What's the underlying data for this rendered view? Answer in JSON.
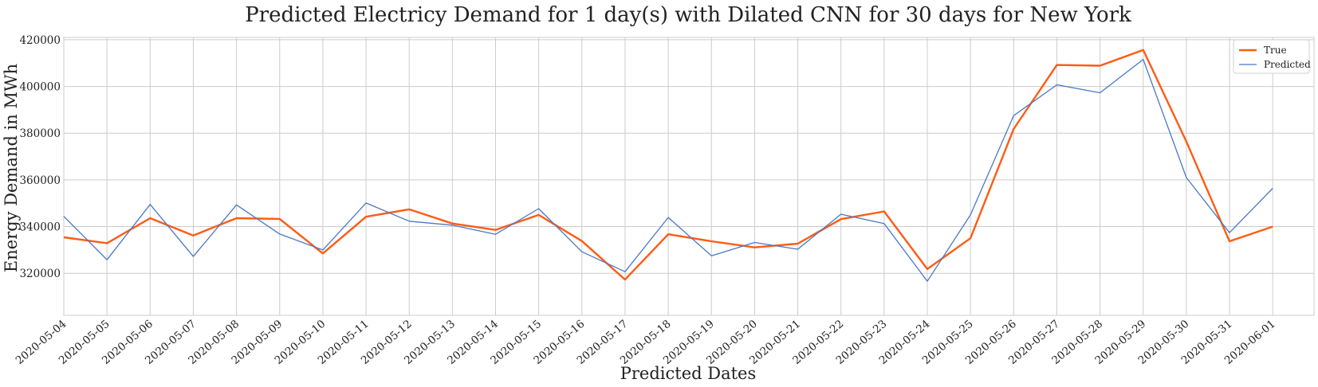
{
  "chart_data": {
    "type": "line",
    "title": "Predicted Electricy Demand for 1 day(s) with Dilated CNN for 30 days for New York",
    "xlabel": "Predicted Dates",
    "ylabel": "Energy Demand in MWh",
    "categories": [
      "2020-05-04",
      "2020-05-05",
      "2020-05-06",
      "2020-05-07",
      "2020-05-08",
      "2020-05-09",
      "2020-05-10",
      "2020-05-11",
      "2020-05-12",
      "2020-05-13",
      "2020-05-14",
      "2020-05-15",
      "2020-05-16",
      "2020-05-17",
      "2020-05-18",
      "2020-05-19",
      "2020-05-20",
      "2020-05-21",
      "2020-05-22",
      "2020-05-23",
      "2020-05-24",
      "2020-05-25",
      "2020-05-26",
      "2020-05-27",
      "2020-05-28",
      "2020-05-29",
      "2020-05-30",
      "2020-05-31",
      "2020-06-01"
    ],
    "yticks": [
      320000,
      340000,
      360000,
      380000,
      400000,
      420000
    ],
    "ylim": [
      302000,
      421000
    ],
    "grid": true,
    "legend_position": "top-right",
    "series": [
      {
        "name": "True",
        "color": "#ff5b14",
        "values": [
          335400,
          332900,
          343600,
          336200,
          343600,
          343300,
          328500,
          344200,
          347400,
          341300,
          338600,
          345000,
          333800,
          317300,
          336700,
          333700,
          331100,
          332700,
          343200,
          346500,
          321800,
          335000,
          381800,
          409200,
          408900,
          415600,
          376400,
          333700,
          340000
        ]
      },
      {
        "name": "Predicted",
        "color": "#4a78c4",
        "values": [
          344400,
          325800,
          349500,
          327200,
          349300,
          336800,
          330000,
          350100,
          342300,
          340600,
          336700,
          347700,
          329200,
          320700,
          343900,
          327500,
          333200,
          330300,
          345300,
          341300,
          316600,
          345000,
          387500,
          400700,
          397300,
          411600,
          361000,
          337400,
          356400
        ]
      }
    ]
  }
}
